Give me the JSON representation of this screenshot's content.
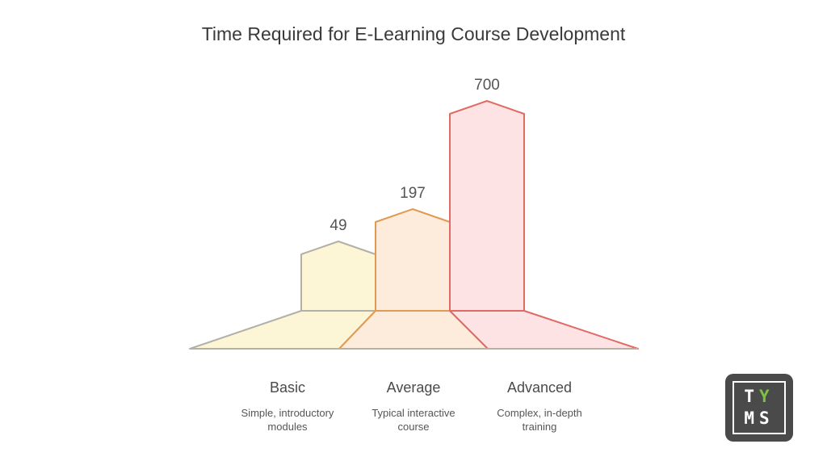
{
  "chart_data": {
    "type": "bar",
    "title": "Time Required for E-Learning Course Development",
    "categories": [
      "Basic",
      "Average",
      "Advanced"
    ],
    "descriptions": [
      "Simple, introductory modules",
      "Typical interactive course",
      "Complex, in-depth training"
    ],
    "description_lines": [
      [
        "Simple, introductory",
        "modules"
      ],
      [
        "Typical interactive",
        "course"
      ],
      [
        "Complex, in-depth",
        "training"
      ]
    ],
    "values": [
      49,
      197,
      700
    ],
    "value_labels": [
      "49",
      "197",
      "700"
    ],
    "colors": {
      "fill": [
        "#fdf6d6",
        "#fdecdc",
        "#fde3e3"
      ],
      "stroke": [
        "#b3b0a7",
        "#e09a52",
        "#e06a64"
      ]
    },
    "xlabel": "",
    "ylabel": ""
  },
  "logo": {
    "text": "TMS",
    "colors": {
      "background": "#4a4a4a",
      "sprout": "#7cc242"
    }
  }
}
